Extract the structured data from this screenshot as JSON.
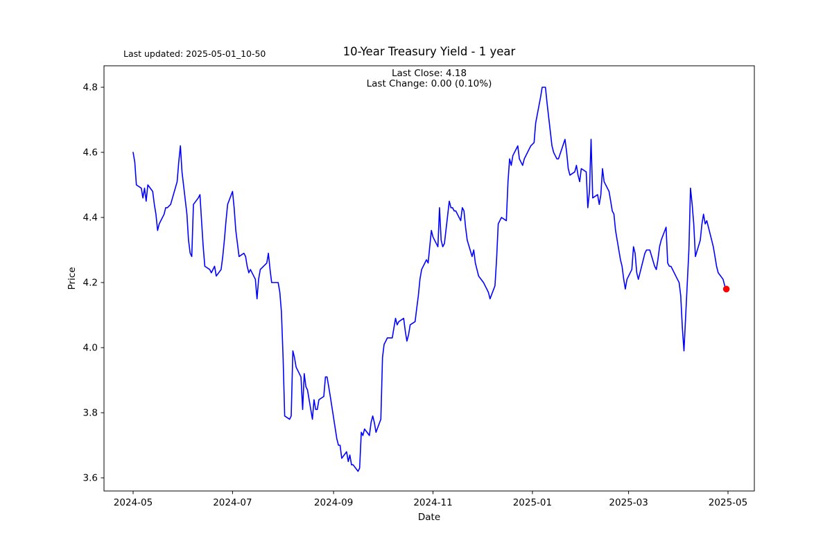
{
  "figure": {
    "last_updated": "Last updated: 2025-05-01_10-50",
    "title": "10-Year Treasury Yield - 1 year",
    "annotation_line1": "Last Close: 4.18",
    "annotation_line2": "Last Change: 0.00 (0.10%)"
  },
  "chart_data": {
    "type": "line",
    "title": "10-Year Treasury Yield - 1 year",
    "xlabel": "Date",
    "ylabel": "Price",
    "last_close": 4.18,
    "last_change": "0.00 (0.10%)",
    "line_color": "#0000ff",
    "marker": {
      "shape": "dot",
      "color": "#ff0000",
      "position": "last-point"
    },
    "grid": false,
    "legend": null,
    "ylim": [
      3.56,
      4.87
    ],
    "x_range": [
      "2024-05-01",
      "2025-05-01"
    ],
    "y_ticks": [
      3.6,
      3.8,
      4.0,
      4.2,
      4.4,
      4.6,
      4.8
    ],
    "x_ticks": [
      {
        "date": "2024-05-01",
        "label": "2024-05"
      },
      {
        "date": "2024-07-01",
        "label": "2024-07"
      },
      {
        "date": "2024-09-01",
        "label": "2024-09"
      },
      {
        "date": "2024-11-01",
        "label": "2024-11"
      },
      {
        "date": "2025-01-01",
        "label": "2025-01"
      },
      {
        "date": "2025-03-01",
        "label": "2025-03"
      },
      {
        "date": "2025-05-01",
        "label": "2025-05"
      }
    ],
    "series": [
      {
        "name": "10-Year Treasury Yield",
        "points": [
          [
            "2024-05-01",
            4.6
          ],
          [
            "2024-05-02",
            4.57
          ],
          [
            "2024-05-03",
            4.5
          ],
          [
            "2024-05-06",
            4.49
          ],
          [
            "2024-05-07",
            4.46
          ],
          [
            "2024-05-08",
            4.49
          ],
          [
            "2024-05-09",
            4.45
          ],
          [
            "2024-05-10",
            4.5
          ],
          [
            "2024-05-13",
            4.48
          ],
          [
            "2024-05-14",
            4.44
          ],
          [
            "2024-05-15",
            4.41
          ],
          [
            "2024-05-16",
            4.36
          ],
          [
            "2024-05-17",
            4.38
          ],
          [
            "2024-05-20",
            4.41
          ],
          [
            "2024-05-21",
            4.43
          ],
          [
            "2024-05-22",
            4.43
          ],
          [
            "2024-05-24",
            4.44
          ],
          [
            "2024-05-28",
            4.51
          ],
          [
            "2024-05-29",
            4.57
          ],
          [
            "2024-05-30",
            4.62
          ],
          [
            "2024-05-31",
            4.54
          ],
          [
            "2024-06-03",
            4.41
          ],
          [
            "2024-06-04",
            4.33
          ],
          [
            "2024-06-05",
            4.29
          ],
          [
            "2024-06-06",
            4.28
          ],
          [
            "2024-06-07",
            4.44
          ],
          [
            "2024-06-10",
            4.46
          ],
          [
            "2024-06-11",
            4.47
          ],
          [
            "2024-06-12",
            4.39
          ],
          [
            "2024-06-13",
            4.31
          ],
          [
            "2024-06-14",
            4.25
          ],
          [
            "2024-06-17",
            4.24
          ],
          [
            "2024-06-18",
            4.23
          ],
          [
            "2024-06-20",
            4.25
          ],
          [
            "2024-06-21",
            4.22
          ],
          [
            "2024-06-24",
            4.24
          ],
          [
            "2024-06-25",
            4.28
          ],
          [
            "2024-06-26",
            4.33
          ],
          [
            "2024-06-27",
            4.39
          ],
          [
            "2024-06-28",
            4.44
          ],
          [
            "2024-07-01",
            4.48
          ],
          [
            "2024-07-02",
            4.43
          ],
          [
            "2024-07-03",
            4.36
          ],
          [
            "2024-07-05",
            4.28
          ],
          [
            "2024-07-08",
            4.29
          ],
          [
            "2024-07-09",
            4.28
          ],
          [
            "2024-07-10",
            4.25
          ],
          [
            "2024-07-11",
            4.23
          ],
          [
            "2024-07-12",
            4.24
          ],
          [
            "2024-07-15",
            4.21
          ],
          [
            "2024-07-16",
            4.15
          ],
          [
            "2024-07-17",
            4.21
          ],
          [
            "2024-07-18",
            4.24
          ],
          [
            "2024-07-22",
            4.26
          ],
          [
            "2024-07-23",
            4.29
          ],
          [
            "2024-07-24",
            4.24
          ],
          [
            "2024-07-25",
            4.2
          ],
          [
            "2024-07-29",
            4.2
          ],
          [
            "2024-07-30",
            4.17
          ],
          [
            "2024-07-31",
            4.11
          ],
          [
            "2024-08-01",
            3.97
          ],
          [
            "2024-08-02",
            3.79
          ],
          [
            "2024-08-05",
            3.78
          ],
          [
            "2024-08-06",
            3.79
          ],
          [
            "2024-08-07",
            3.99
          ],
          [
            "2024-08-08",
            3.97
          ],
          [
            "2024-08-09",
            3.94
          ],
          [
            "2024-08-12",
            3.91
          ],
          [
            "2024-08-13",
            3.81
          ],
          [
            "2024-08-14",
            3.92
          ],
          [
            "2024-08-15",
            3.88
          ],
          [
            "2024-08-16",
            3.87
          ],
          [
            "2024-08-19",
            3.78
          ],
          [
            "2024-08-20",
            3.84
          ],
          [
            "2024-08-21",
            3.81
          ],
          [
            "2024-08-22",
            3.81
          ],
          [
            "2024-08-23",
            3.84
          ],
          [
            "2024-08-26",
            3.85
          ],
          [
            "2024-08-27",
            3.91
          ],
          [
            "2024-08-28",
            3.91
          ],
          [
            "2024-08-29",
            3.88
          ],
          [
            "2024-08-30",
            3.85
          ],
          [
            "2024-09-03",
            3.72
          ],
          [
            "2024-09-04",
            3.7
          ],
          [
            "2024-09-05",
            3.7
          ],
          [
            "2024-09-06",
            3.66
          ],
          [
            "2024-09-09",
            3.68
          ],
          [
            "2024-09-10",
            3.65
          ],
          [
            "2024-09-11",
            3.67
          ],
          [
            "2024-09-12",
            3.64
          ],
          [
            "2024-09-13",
            3.64
          ],
          [
            "2024-09-16",
            3.62
          ],
          [
            "2024-09-17",
            3.63
          ],
          [
            "2024-09-18",
            3.74
          ],
          [
            "2024-09-19",
            3.73
          ],
          [
            "2024-09-20",
            3.75
          ],
          [
            "2024-09-23",
            3.73
          ],
          [
            "2024-09-24",
            3.77
          ],
          [
            "2024-09-25",
            3.79
          ],
          [
            "2024-09-26",
            3.77
          ],
          [
            "2024-09-27",
            3.74
          ],
          [
            "2024-09-30",
            3.78
          ],
          [
            "2024-10-01",
            3.97
          ],
          [
            "2024-10-02",
            4.01
          ],
          [
            "2024-10-03",
            4.02
          ],
          [
            "2024-10-04",
            4.03
          ],
          [
            "2024-10-07",
            4.03
          ],
          [
            "2024-10-08",
            4.06
          ],
          [
            "2024-10-09",
            4.09
          ],
          [
            "2024-10-10",
            4.07
          ],
          [
            "2024-10-11",
            4.08
          ],
          [
            "2024-10-14",
            4.09
          ],
          [
            "2024-10-15",
            4.05
          ],
          [
            "2024-10-16",
            4.02
          ],
          [
            "2024-10-17",
            4.04
          ],
          [
            "2024-10-18",
            4.07
          ],
          [
            "2024-10-21",
            4.08
          ],
          [
            "2024-10-22",
            4.12
          ],
          [
            "2024-10-23",
            4.16
          ],
          [
            "2024-10-24",
            4.21
          ],
          [
            "2024-10-25",
            4.24
          ],
          [
            "2024-10-28",
            4.27
          ],
          [
            "2024-10-29",
            4.26
          ],
          [
            "2024-10-30",
            4.31
          ],
          [
            "2024-10-31",
            4.36
          ],
          [
            "2024-11-01",
            4.34
          ],
          [
            "2024-11-04",
            4.31
          ],
          [
            "2024-11-05",
            4.43
          ],
          [
            "2024-11-06",
            4.33
          ],
          [
            "2024-11-07",
            4.31
          ],
          [
            "2024-11-08",
            4.32
          ],
          [
            "2024-11-11",
            4.45
          ],
          [
            "2024-11-12",
            4.43
          ],
          [
            "2024-11-13",
            4.43
          ],
          [
            "2024-11-14",
            4.42
          ],
          [
            "2024-11-15",
            4.42
          ],
          [
            "2024-11-18",
            4.39
          ],
          [
            "2024-11-19",
            4.43
          ],
          [
            "2024-11-20",
            4.42
          ],
          [
            "2024-11-21",
            4.37
          ],
          [
            "2024-11-22",
            4.33
          ],
          [
            "2024-11-25",
            4.28
          ],
          [
            "2024-11-26",
            4.3
          ],
          [
            "2024-11-27",
            4.26
          ],
          [
            "2024-11-29",
            4.22
          ],
          [
            "2024-12-02",
            4.2
          ],
          [
            "2024-12-03",
            4.19
          ],
          [
            "2024-12-04",
            4.18
          ],
          [
            "2024-12-05",
            4.17
          ],
          [
            "2024-12-06",
            4.15
          ],
          [
            "2024-12-09",
            4.19
          ],
          [
            "2024-12-10",
            4.27
          ],
          [
            "2024-12-11",
            4.38
          ],
          [
            "2024-12-12",
            4.39
          ],
          [
            "2024-12-13",
            4.4
          ],
          [
            "2024-12-16",
            4.39
          ],
          [
            "2024-12-17",
            4.51
          ],
          [
            "2024-12-18",
            4.58
          ],
          [
            "2024-12-19",
            4.56
          ],
          [
            "2024-12-20",
            4.59
          ],
          [
            "2024-12-23",
            4.62
          ],
          [
            "2024-12-24",
            4.58
          ],
          [
            "2024-12-26",
            4.56
          ],
          [
            "2024-12-27",
            4.58
          ],
          [
            "2024-12-30",
            4.61
          ],
          [
            "2024-12-31",
            4.62
          ],
          [
            "2025-01-02",
            4.63
          ],
          [
            "2025-01-03",
            4.69
          ],
          [
            "2025-01-06",
            4.77
          ],
          [
            "2025-01-07",
            4.8
          ],
          [
            "2025-01-08",
            4.8
          ],
          [
            "2025-01-09",
            4.8
          ],
          [
            "2025-01-10",
            4.75
          ],
          [
            "2025-01-13",
            4.62
          ],
          [
            "2025-01-14",
            4.6
          ],
          [
            "2025-01-15",
            4.59
          ],
          [
            "2025-01-16",
            4.58
          ],
          [
            "2025-01-17",
            4.58
          ],
          [
            "2025-01-21",
            4.64
          ],
          [
            "2025-01-22",
            4.6
          ],
          [
            "2025-01-23",
            4.55
          ],
          [
            "2025-01-24",
            4.53
          ],
          [
            "2025-01-27",
            4.54
          ],
          [
            "2025-01-28",
            4.56
          ],
          [
            "2025-01-29",
            4.53
          ],
          [
            "2025-01-30",
            4.51
          ],
          [
            "2025-01-31",
            4.55
          ],
          [
            "2025-02-03",
            4.54
          ],
          [
            "2025-02-04",
            4.43
          ],
          [
            "2025-02-05",
            4.48
          ],
          [
            "2025-02-06",
            4.64
          ],
          [
            "2025-02-07",
            4.46
          ],
          [
            "2025-02-10",
            4.47
          ],
          [
            "2025-02-11",
            4.44
          ],
          [
            "2025-02-12",
            4.47
          ],
          [
            "2025-02-13",
            4.55
          ],
          [
            "2025-02-14",
            4.51
          ],
          [
            "2025-02-17",
            4.48
          ],
          [
            "2025-02-18",
            4.45
          ],
          [
            "2025-02-19",
            4.42
          ],
          [
            "2025-02-20",
            4.41
          ],
          [
            "2025-02-21",
            4.36
          ],
          [
            "2025-02-24",
            4.27
          ],
          [
            "2025-02-25",
            4.25
          ],
          [
            "2025-02-26",
            4.21
          ],
          [
            "2025-02-27",
            4.18
          ],
          [
            "2025-02-28",
            4.21
          ],
          [
            "2025-03-03",
            4.24
          ],
          [
            "2025-03-04",
            4.31
          ],
          [
            "2025-03-05",
            4.29
          ],
          [
            "2025-03-06",
            4.23
          ],
          [
            "2025-03-07",
            4.21
          ],
          [
            "2025-03-10",
            4.27
          ],
          [
            "2025-03-11",
            4.29
          ],
          [
            "2025-03-12",
            4.3
          ],
          [
            "2025-03-13",
            4.3
          ],
          [
            "2025-03-14",
            4.3
          ],
          [
            "2025-03-17",
            4.25
          ],
          [
            "2025-03-18",
            4.24
          ],
          [
            "2025-03-19",
            4.27
          ],
          [
            "2025-03-20",
            4.31
          ],
          [
            "2025-03-21",
            4.33
          ],
          [
            "2025-03-24",
            4.37
          ],
          [
            "2025-03-25",
            4.26
          ],
          [
            "2025-03-26",
            4.25
          ],
          [
            "2025-03-27",
            4.25
          ],
          [
            "2025-03-28",
            4.24
          ],
          [
            "2025-03-31",
            4.21
          ],
          [
            "2025-04-01",
            4.2
          ],
          [
            "2025-04-02",
            4.16
          ],
          [
            "2025-04-03",
            4.06
          ],
          [
            "2025-04-04",
            3.99
          ],
          [
            "2025-04-07",
            4.3
          ],
          [
            "2025-04-08",
            4.49
          ],
          [
            "2025-04-09",
            4.44
          ],
          [
            "2025-04-10",
            4.38
          ],
          [
            "2025-04-11",
            4.28
          ],
          [
            "2025-04-14",
            4.33
          ],
          [
            "2025-04-15",
            4.38
          ],
          [
            "2025-04-16",
            4.41
          ],
          [
            "2025-04-17",
            4.38
          ],
          [
            "2025-04-18",
            4.39
          ],
          [
            "2025-04-21",
            4.33
          ],
          [
            "2025-04-22",
            4.31
          ],
          [
            "2025-04-23",
            4.28
          ],
          [
            "2025-04-24",
            4.25
          ],
          [
            "2025-04-25",
            4.23
          ],
          [
            "2025-04-28",
            4.21
          ],
          [
            "2025-04-29",
            4.19
          ],
          [
            "2025-04-30",
            4.18
          ]
        ]
      }
    ]
  }
}
